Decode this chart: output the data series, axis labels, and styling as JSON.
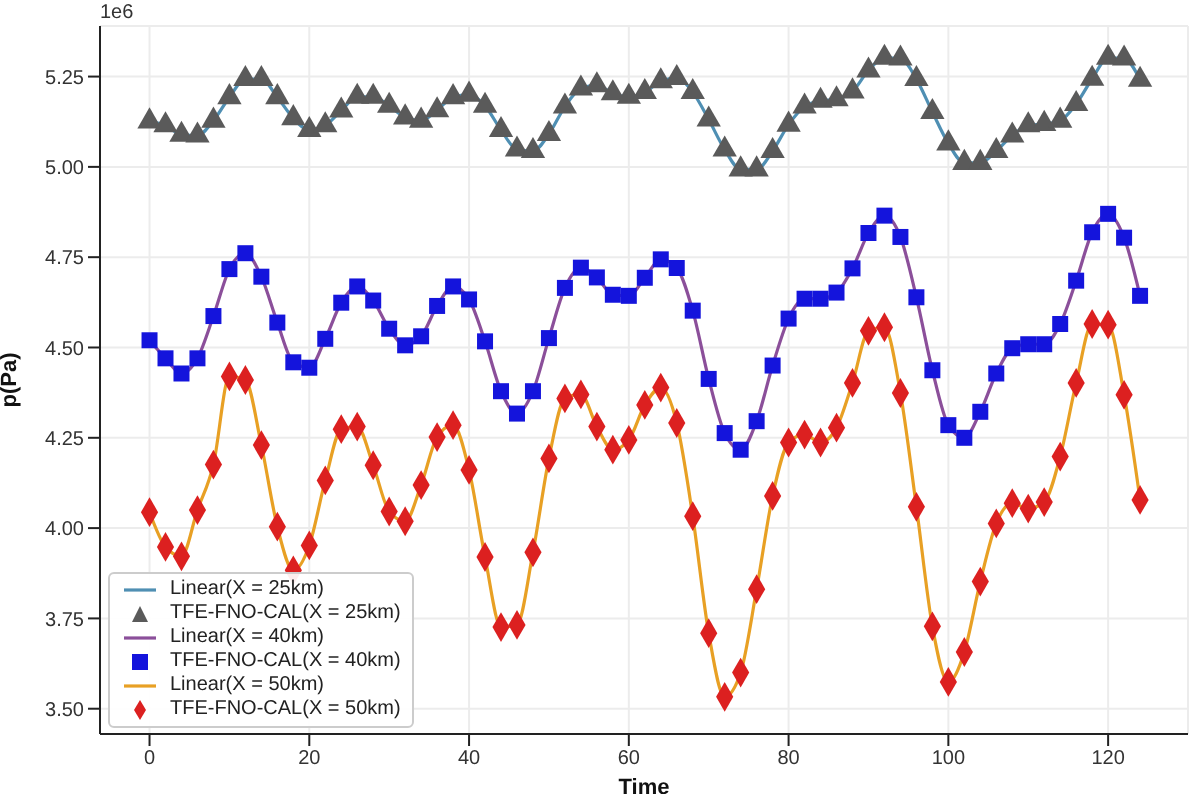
{
  "chart_data": {
    "type": "line",
    "xlabel": "Time",
    "ylabel": "p(Pa)",
    "annotations": [
      "1e6"
    ],
    "x": [
      0,
      2,
      4,
      6,
      8,
      10,
      12,
      14,
      16,
      18,
      20,
      22,
      24,
      26,
      28,
      30,
      32,
      34,
      36,
      38,
      40,
      42,
      44,
      46,
      48,
      50,
      52,
      54,
      56,
      58,
      60,
      62,
      64,
      66,
      68,
      70,
      72,
      74,
      76,
      78,
      80,
      82,
      84,
      86,
      88,
      90,
      92,
      94,
      96,
      98,
      100,
      102,
      104,
      106,
      108,
      110,
      112,
      114,
      116,
      118,
      120,
      122,
      124
    ],
    "xlim": [
      -6.2,
      130
    ],
    "xticks": [
      0,
      20,
      40,
      60,
      80,
      100,
      120
    ],
    "ylim": [
      3.43,
      5.39
    ],
    "yticks": [
      {
        "value": 3.5,
        "label": "3.50"
      },
      {
        "value": 3.75,
        "label": "3.75"
      },
      {
        "value": 4,
        "label": "4.00"
      },
      {
        "value": 4.25,
        "label": "4.25"
      },
      {
        "value": 4.5,
        "label": "4.50"
      },
      {
        "value": 4.75,
        "label": "4.75"
      },
      {
        "value": 5,
        "label": "5.00"
      },
      {
        "value": 5.25,
        "label": "5.25"
      }
    ],
    "grid": true,
    "legend": "bottom left",
    "line_style": "solid",
    "series": [
      {
        "name": "Linear(X = 25km)",
        "type": "line",
        "marker": "none",
        "color": "#4f8fb3",
        "values": [
          5.126,
          5.115,
          5.089,
          5.087,
          5.128,
          5.193,
          5.243,
          5.243,
          5.193,
          5.135,
          5.102,
          5.115,
          5.156,
          5.194,
          5.194,
          5.169,
          5.137,
          5.128,
          5.157,
          5.193,
          5.2,
          5.169,
          5.102,
          5.048,
          5.044,
          5.091,
          5.167,
          5.217,
          5.226,
          5.204,
          5.194,
          5.207,
          5.237,
          5.246,
          5.207,
          5.131,
          5.048,
          4.993,
          4.993,
          5.044,
          5.117,
          5.167,
          5.183,
          5.187,
          5.209,
          5.267,
          5.302,
          5.3,
          5.243,
          5.152,
          5.065,
          5.011,
          5.011,
          5.044,
          5.087,
          5.115,
          5.119,
          5.128,
          5.174,
          5.244,
          5.302,
          5.3,
          5.241
        ]
      },
      {
        "name": "TFE-FNO-CAL(X = 25km)",
        "type": "scatter",
        "marker": "triangle",
        "color": "#5a5a5a",
        "values": [
          5.126,
          5.115,
          5.089,
          5.087,
          5.128,
          5.193,
          5.243,
          5.243,
          5.193,
          5.135,
          5.102,
          5.115,
          5.156,
          5.194,
          5.194,
          5.169,
          5.137,
          5.128,
          5.157,
          5.193,
          5.2,
          5.169,
          5.102,
          5.048,
          5.044,
          5.091,
          5.167,
          5.217,
          5.226,
          5.204,
          5.194,
          5.207,
          5.237,
          5.246,
          5.207,
          5.131,
          5.048,
          4.993,
          4.993,
          5.044,
          5.117,
          5.167,
          5.183,
          5.187,
          5.209,
          5.267,
          5.302,
          5.3,
          5.243,
          5.152,
          5.065,
          5.011,
          5.011,
          5.044,
          5.087,
          5.115,
          5.119,
          5.128,
          5.174,
          5.244,
          5.302,
          5.3,
          5.241
        ]
      },
      {
        "name": "Linear(X = 40km)",
        "type": "line",
        "marker": "none",
        "color": "#8b4f9a",
        "values": [
          4.52,
          4.47,
          4.428,
          4.47,
          4.587,
          4.717,
          4.761,
          4.696,
          4.569,
          4.459,
          4.444,
          4.524,
          4.624,
          4.669,
          4.63,
          4.552,
          4.506,
          4.531,
          4.615,
          4.669,
          4.633,
          4.517,
          4.379,
          4.317,
          4.379,
          4.526,
          4.665,
          4.721,
          4.694,
          4.646,
          4.643,
          4.693,
          4.744,
          4.72,
          4.602,
          4.413,
          4.263,
          4.217,
          4.296,
          4.45,
          4.58,
          4.635,
          4.635,
          4.652,
          4.719,
          4.817,
          4.865,
          4.806,
          4.639,
          4.437,
          4.285,
          4.25,
          4.322,
          4.428,
          4.498,
          4.509,
          4.509,
          4.565,
          4.685,
          4.819,
          4.87,
          4.804,
          4.643
        ]
      },
      {
        "name": "TFE-FNO-CAL(X = 40km)",
        "type": "scatter",
        "marker": "square",
        "color": "#1414dc",
        "values": [
          4.52,
          4.47,
          4.428,
          4.47,
          4.587,
          4.717,
          4.761,
          4.696,
          4.569,
          4.459,
          4.444,
          4.524,
          4.624,
          4.669,
          4.63,
          4.552,
          4.506,
          4.531,
          4.615,
          4.669,
          4.633,
          4.517,
          4.379,
          4.317,
          4.379,
          4.526,
          4.665,
          4.721,
          4.694,
          4.646,
          4.643,
          4.693,
          4.744,
          4.72,
          4.602,
          4.413,
          4.263,
          4.217,
          4.296,
          4.45,
          4.58,
          4.635,
          4.635,
          4.652,
          4.719,
          4.817,
          4.865,
          4.806,
          4.639,
          4.437,
          4.285,
          4.25,
          4.322,
          4.428,
          4.498,
          4.509,
          4.509,
          4.565,
          4.685,
          4.819,
          4.87,
          4.804,
          4.643
        ]
      },
      {
        "name": "Linear(X = 50km)",
        "type": "line",
        "marker": "none",
        "color": "#e8a024",
        "values": [
          4.044,
          3.948,
          3.922,
          4.05,
          4.176,
          4.42,
          4.41,
          4.23,
          4.004,
          3.883,
          3.952,
          4.132,
          4.274,
          4.281,
          4.174,
          4.046,
          4.019,
          4.119,
          4.252,
          4.285,
          4.161,
          3.92,
          3.726,
          3.732,
          3.933,
          4.193,
          4.359,
          4.37,
          4.281,
          4.217,
          4.244,
          4.341,
          4.389,
          4.291,
          4.033,
          3.709,
          3.533,
          3.6,
          3.831,
          4.089,
          4.237,
          4.259,
          4.237,
          4.278,
          4.402,
          4.546,
          4.556,
          4.374,
          4.059,
          3.728,
          3.574,
          3.657,
          3.852,
          4.013,
          4.069,
          4.054,
          4.072,
          4.198,
          4.402,
          4.565,
          4.563,
          4.369,
          4.078
        ]
      },
      {
        "name": "TFE-FNO-CAL(X = 50km)",
        "type": "scatter",
        "marker": "diamond",
        "color": "#dc2020",
        "values": [
          4.044,
          3.948,
          3.922,
          4.05,
          4.176,
          4.42,
          4.41,
          4.23,
          4.004,
          3.883,
          3.952,
          4.132,
          4.274,
          4.281,
          4.174,
          4.046,
          4.019,
          4.119,
          4.252,
          4.285,
          4.161,
          3.92,
          3.726,
          3.732,
          3.933,
          4.193,
          4.359,
          4.37,
          4.281,
          4.217,
          4.244,
          4.341,
          4.389,
          4.291,
          4.033,
          3.709,
          3.533,
          3.6,
          3.831,
          4.089,
          4.237,
          4.259,
          4.237,
          4.278,
          4.402,
          4.546,
          4.556,
          4.374,
          4.059,
          3.728,
          3.574,
          3.657,
          3.852,
          4.013,
          4.069,
          4.054,
          4.072,
          4.198,
          4.402,
          4.565,
          4.563,
          4.369,
          4.078
        ]
      }
    ]
  }
}
